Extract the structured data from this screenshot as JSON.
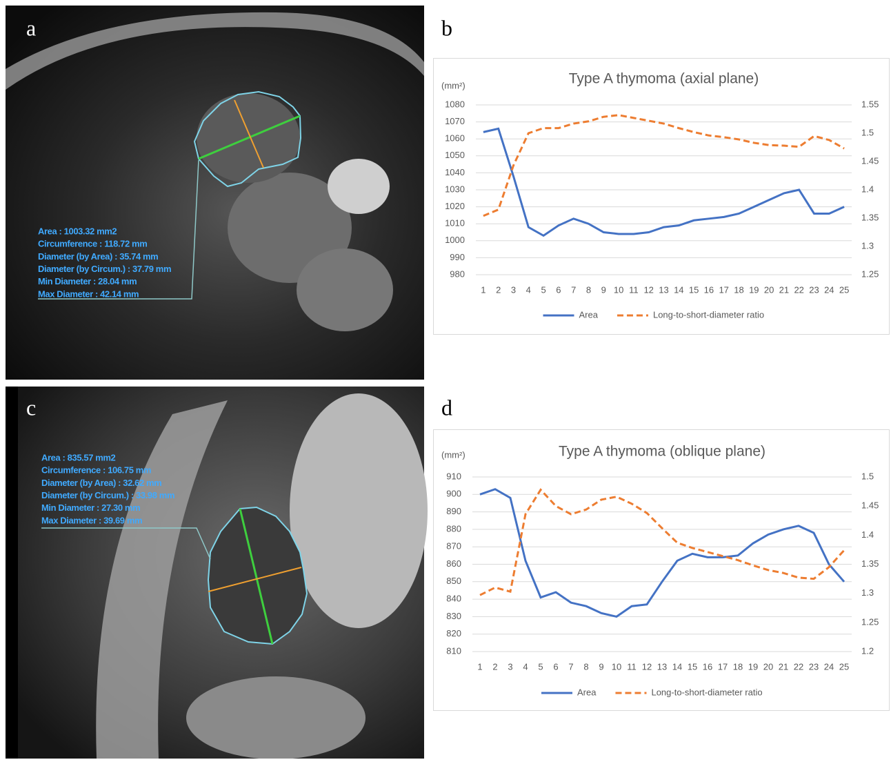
{
  "panels": [
    {
      "label": "a",
      "measurements": [
        "Area : 1003.32 mm2",
        "Circumference : 118.72 mm",
        "Diameter (by Area) : 35.74 mm",
        "Diameter (by Circum.) : 37.79 mm",
        "Min Diameter : 28.04 mm",
        "Max Diameter : 42.14 mm"
      ]
    },
    {
      "label": "b"
    },
    {
      "label": "c",
      "measurements": [
        "Area : 835.57 mm2",
        "Circumference : 106.75 mm",
        "Diameter (by Area) : 32.62 mm",
        "Diameter (by Circum.) : 33.98 mm",
        "Min Diameter : 27.30 mm",
        "Max Diameter : 39.69 mm"
      ]
    },
    {
      "label": "d"
    }
  ],
  "chart_data": [
    {
      "type": "line",
      "title": "Type A thymoma (axial plane)",
      "y_label": "(mm²)",
      "categories": [
        1,
        2,
        3,
        4,
        5,
        6,
        7,
        8,
        9,
        10,
        11,
        12,
        13,
        14,
        15,
        16,
        17,
        18,
        19,
        20,
        21,
        22,
        23,
        24,
        25
      ],
      "series": [
        {
          "name": "Area",
          "color": "#4472c4",
          "values": [
            1064,
            1066,
            1038,
            1008,
            1003,
            1009,
            1013,
            1010,
            1005,
            1004,
            1004,
            1005,
            1008,
            1009,
            1012,
            1013,
            1014,
            1016,
            1020,
            1024,
            1028,
            1030,
            1016,
            1016,
            1020
          ]
        },
        {
          "name": "Long-to-short-diameter ratio",
          "color": "#ed7d31",
          "dashed": true,
          "axis": "y2",
          "values": [
            1.354,
            1.365,
            1.443,
            1.5,
            1.509,
            1.509,
            1.517,
            1.521,
            1.529,
            1.532,
            1.527,
            1.522,
            1.517,
            1.509,
            1.502,
            1.496,
            1.493,
            1.489,
            1.483,
            1.479,
            1.478,
            1.476,
            1.495,
            1.488,
            1.473
          ]
        }
      ],
      "ylim": [
        980,
        1080
      ],
      "yticks": [
        980,
        990,
        1000,
        1010,
        1020,
        1030,
        1040,
        1050,
        1060,
        1070,
        1080
      ],
      "y2lim": [
        1.25,
        1.55
      ],
      "y2ticks": [
        1.25,
        1.3,
        1.35,
        1.4,
        1.45,
        1.5,
        1.55
      ],
      "grid": true,
      "legend": "bottom"
    },
    {
      "type": "line",
      "title": "Type A thymoma (oblique plane)",
      "y_label": "(mm²)",
      "categories": [
        1,
        2,
        3,
        4,
        5,
        6,
        7,
        8,
        9,
        10,
        11,
        12,
        13,
        14,
        15,
        16,
        17,
        18,
        19,
        20,
        21,
        22,
        23,
        24,
        25
      ],
      "series": [
        {
          "name": "Area",
          "color": "#4472c4",
          "values": [
            900,
            903,
            898,
            862,
            841,
            844,
            838,
            836,
            832,
            830,
            836,
            837,
            850,
            862,
            866,
            864,
            864,
            865,
            872,
            877,
            880,
            882,
            878,
            860,
            850
          ]
        },
        {
          "name": "Long-to-short-diameter ratio",
          "color": "#ed7d31",
          "dashed": true,
          "axis": "y2",
          "values": [
            1.297,
            1.31,
            1.303,
            1.436,
            1.478,
            1.45,
            1.436,
            1.444,
            1.461,
            1.466,
            1.454,
            1.438,
            1.412,
            1.387,
            1.378,
            1.371,
            1.364,
            1.357,
            1.348,
            1.34,
            1.335,
            1.327,
            1.325,
            1.345,
            1.374
          ]
        }
      ],
      "ylim": [
        810,
        910
      ],
      "yticks": [
        810,
        820,
        830,
        840,
        850,
        860,
        870,
        880,
        890,
        900,
        910
      ],
      "y2lim": [
        1.2,
        1.5
      ],
      "y2ticks": [
        1.2,
        1.25,
        1.3,
        1.35,
        1.4,
        1.45,
        1.5
      ],
      "grid": true,
      "legend": "bottom"
    }
  ]
}
